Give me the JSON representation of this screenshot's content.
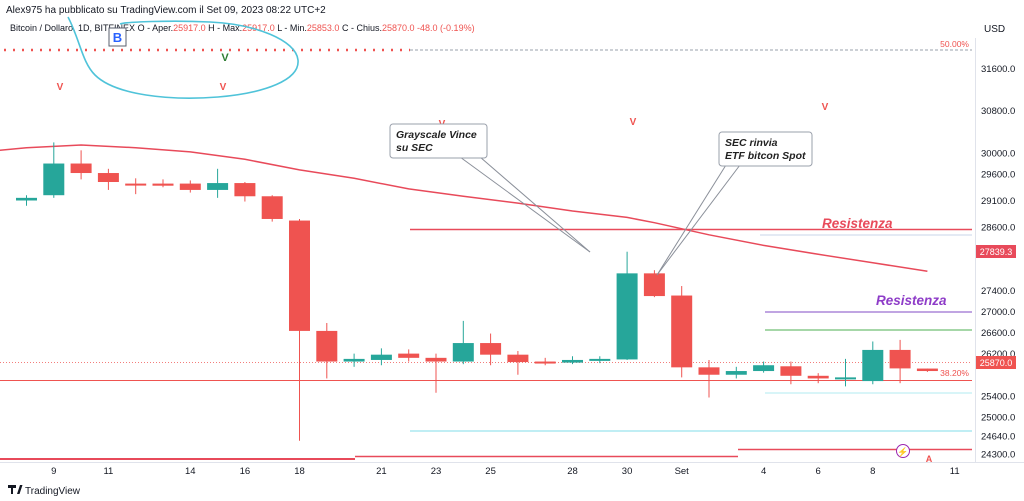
{
  "publisher_line": "Alex975 ha pubblicato su TradingView.com il Set 09, 2023 08:22 UTC+2",
  "legend": {
    "symbol": "Bitcoin / Dollaro, 1D, BITFINEX",
    "open_label": "O - Aper.",
    "open_value": "25917.0",
    "high_label": "H - Max.",
    "high_value": "25917.0",
    "low_label": "L - Min.",
    "low_value": "25853.0",
    "close_label": "C - Chius.",
    "close_value": "25870.0",
    "change": "-48.0 (-0.19%)"
  },
  "currency": "USD",
  "footer_logo": "TradingView",
  "colors": {
    "up": "#26a69a",
    "down": "#ef5350",
    "ma": "#e84a5a",
    "purple": "#8e3cc8",
    "cyan": "#4fc3d9",
    "fib": "#ef5350"
  },
  "chart_data": {
    "type": "candlestick",
    "y_axis_ticks": [
      31600,
      30800,
      30000,
      29600,
      29100,
      28600,
      28200,
      27400,
      27000,
      26600,
      26200,
      25400,
      25000,
      24640,
      24300
    ],
    "ylim": [
      24280,
      31950
    ],
    "x_tick_labels": [
      {
        "i": 1,
        "label": "9"
      },
      {
        "i": 3,
        "label": "11"
      },
      {
        "i": 6,
        "label": "14"
      },
      {
        "i": 8,
        "label": "16"
      },
      {
        "i": 10,
        "label": "18"
      },
      {
        "i": 13,
        "label": "21"
      },
      {
        "i": 15,
        "label": "23"
      },
      {
        "i": 17,
        "label": "25"
      },
      {
        "i": 20,
        "label": "28"
      },
      {
        "i": 22,
        "label": "30"
      },
      {
        "i": 24,
        "label": "Set"
      },
      {
        "i": 27,
        "label": "4"
      },
      {
        "i": 29,
        "label": "6"
      },
      {
        "i": 31,
        "label": "8"
      },
      {
        "i": 34,
        "label": "11"
      }
    ],
    "candles": [
      {
        "o": 29100,
        "h": 29200,
        "l": 29000,
        "c": 29150
      },
      {
        "o": 29200,
        "h": 30200,
        "l": 29150,
        "c": 29800
      },
      {
        "o": 29800,
        "h": 30050,
        "l": 29500,
        "c": 29620
      },
      {
        "o": 29620,
        "h": 29700,
        "l": 29300,
        "c": 29450
      },
      {
        "o": 29420,
        "h": 29520,
        "l": 29220,
        "c": 29400
      },
      {
        "o": 29420,
        "h": 29500,
        "l": 29350,
        "c": 29380
      },
      {
        "o": 29420,
        "h": 29480,
        "l": 29250,
        "c": 29300
      },
      {
        "o": 29300,
        "h": 29700,
        "l": 29150,
        "c": 29430
      },
      {
        "o": 29430,
        "h": 29450,
        "l": 29080,
        "c": 29180
      },
      {
        "o": 29180,
        "h": 29200,
        "l": 28700,
        "c": 28750
      },
      {
        "o": 28720,
        "h": 28750,
        "l": 24550,
        "c": 26630
      },
      {
        "o": 26630,
        "h": 26780,
        "l": 25730,
        "c": 26050
      },
      {
        "o": 26050,
        "h": 26200,
        "l": 25950,
        "c": 26100
      },
      {
        "o": 26080,
        "h": 26300,
        "l": 25980,
        "c": 26180
      },
      {
        "o": 26200,
        "h": 26280,
        "l": 26050,
        "c": 26120
      },
      {
        "o": 26120,
        "h": 26200,
        "l": 25460,
        "c": 26050
      },
      {
        "o": 26050,
        "h": 26820,
        "l": 26000,
        "c": 26400
      },
      {
        "o": 26400,
        "h": 26580,
        "l": 25980,
        "c": 26180
      },
      {
        "o": 26180,
        "h": 26250,
        "l": 25800,
        "c": 26040
      },
      {
        "o": 26050,
        "h": 26120,
        "l": 25980,
        "c": 26020
      },
      {
        "o": 26030,
        "h": 26150,
        "l": 26000,
        "c": 26080
      },
      {
        "o": 26070,
        "h": 26150,
        "l": 26020,
        "c": 26100
      },
      {
        "o": 26090,
        "h": 28130,
        "l": 26080,
        "c": 27720
      },
      {
        "o": 27720,
        "h": 27780,
        "l": 27270,
        "c": 27290
      },
      {
        "o": 27300,
        "h": 27480,
        "l": 25750,
        "c": 25940
      },
      {
        "o": 25940,
        "h": 26080,
        "l": 25370,
        "c": 25800
      },
      {
        "o": 25800,
        "h": 25950,
        "l": 25730,
        "c": 25870
      },
      {
        "o": 25870,
        "h": 26050,
        "l": 25840,
        "c": 25980
      },
      {
        "o": 25960,
        "h": 26050,
        "l": 25620,
        "c": 25780
      },
      {
        "o": 25780,
        "h": 25830,
        "l": 25640,
        "c": 25730
      },
      {
        "o": 25740,
        "h": 26100,
        "l": 25580,
        "c": 25750
      },
      {
        "o": 25680,
        "h": 26430,
        "l": 25620,
        "c": 26270
      },
      {
        "o": 26270,
        "h": 26460,
        "l": 25640,
        "c": 25920
      },
      {
        "o": 25917,
        "h": 25917,
        "l": 25853,
        "c": 25870
      }
    ],
    "moving_average": [
      {
        "i": -1,
        "v": 30050
      },
      {
        "i": 0,
        "v": 30100
      },
      {
        "i": 2,
        "v": 30150
      },
      {
        "i": 4,
        "v": 30100
      },
      {
        "i": 6,
        "v": 30020
      },
      {
        "i": 8,
        "v": 29880
      },
      {
        "i": 10,
        "v": 29680
      },
      {
        "i": 12,
        "v": 29520
      },
      {
        "i": 14,
        "v": 29320
      },
      {
        "i": 16,
        "v": 29180
      },
      {
        "i": 18,
        "v": 29050
      },
      {
        "i": 20,
        "v": 28900
      },
      {
        "i": 22,
        "v": 28780
      },
      {
        "i": 23,
        "v": 28680
      },
      {
        "i": 25,
        "v": 28450
      },
      {
        "i": 27,
        "v": 28250
      },
      {
        "i": 29,
        "v": 28080
      },
      {
        "i": 31,
        "v": 27920
      },
      {
        "i": 33,
        "v": 27760
      }
    ],
    "last_price": "25870.0",
    "price_flag": "27839.3",
    "fib_levels": [
      {
        "label": "50.00%",
        "price": 31950
      },
      {
        "label": "38.20%",
        "price": 25600
      }
    ],
    "annotations": [
      {
        "text": "Grayscale Vince",
        "text2": "su SEC"
      },
      {
        "text": "SEC rinvia",
        "text2": "ETF bitcon Spot"
      }
    ],
    "labels": {
      "resistenza_red": "Resistenza",
      "resistenza_purple": "Resistenza",
      "signal_v": "V",
      "signal_v_green": "V",
      "signal_a": "A",
      "marker_b": "B"
    }
  }
}
